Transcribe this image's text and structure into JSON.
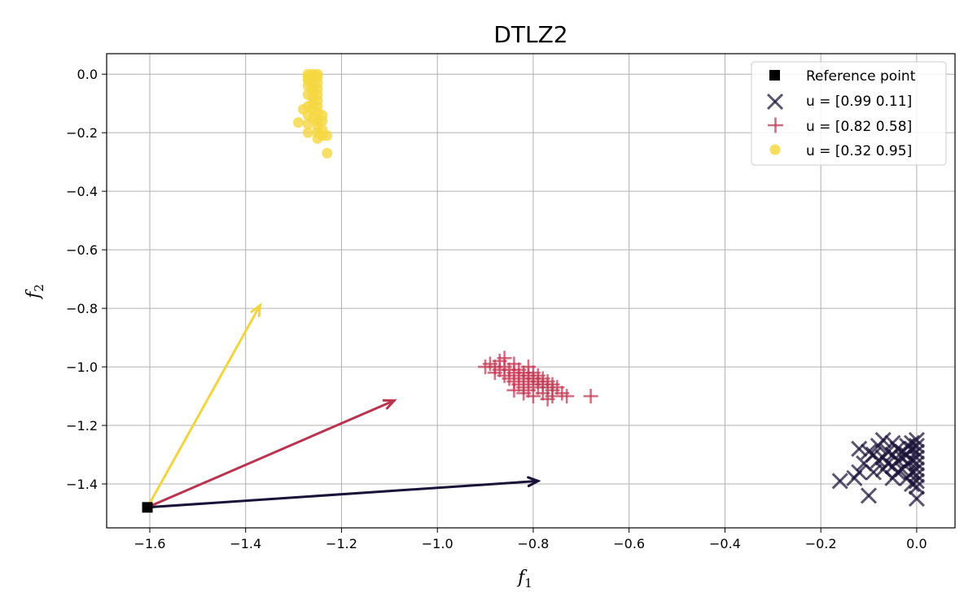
{
  "chart_data": {
    "type": "scatter",
    "title": "DTLZ2",
    "xlabel": "f",
    "xlabel_sub": "1",
    "ylabel": "f",
    "ylabel_sub": "2",
    "xlim": [
      -1.69,
      0.08
    ],
    "ylim": [
      -1.55,
      0.07
    ],
    "xticks": [
      -1.6,
      -1.4,
      -1.2,
      -1.0,
      -0.8,
      -0.6,
      -0.4,
      -0.2,
      0.0
    ],
    "xtick_labels": [
      "−1.6",
      "−1.4",
      "−1.2",
      "−1.0",
      "−0.8",
      "−0.6",
      "−0.4",
      "−0.2",
      "0.0"
    ],
    "yticks": [
      0.0,
      -0.2,
      -0.4,
      -0.6,
      -0.8,
      -1.0,
      -1.2,
      -1.4
    ],
    "ytick_labels": [
      "0.0",
      "−0.2",
      "−0.4",
      "−0.6",
      "−0.8",
      "−1.0",
      "−1.2",
      "−1.4"
    ],
    "grid": true,
    "legend_position": "top-right",
    "reference_point": {
      "label": "Reference point",
      "x": -1.605,
      "y": -1.48,
      "color": "#000000"
    },
    "series": [
      {
        "name": "u = [0.99 0.11]",
        "marker": "x",
        "color": "#1a1238",
        "points": [
          [
            0.0,
            -1.25
          ],
          [
            0.0,
            -1.27
          ],
          [
            0.0,
            -1.29
          ],
          [
            0.0,
            -1.31
          ],
          [
            0.0,
            -1.33
          ],
          [
            0.0,
            -1.35
          ],
          [
            0.0,
            -1.37
          ],
          [
            0.0,
            -1.39
          ],
          [
            0.0,
            -1.41
          ],
          [
            0.0,
            -1.45
          ],
          [
            -0.01,
            -1.26
          ],
          [
            -0.01,
            -1.28
          ],
          [
            -0.01,
            -1.32
          ],
          [
            -0.01,
            -1.36
          ],
          [
            -0.01,
            -1.4
          ],
          [
            -0.02,
            -1.27
          ],
          [
            -0.02,
            -1.3
          ],
          [
            -0.02,
            -1.33
          ],
          [
            -0.02,
            -1.38
          ],
          [
            -0.03,
            -1.29
          ],
          [
            -0.03,
            -1.31
          ],
          [
            -0.03,
            -1.35
          ],
          [
            -0.04,
            -1.28
          ],
          [
            -0.04,
            -1.32
          ],
          [
            -0.04,
            -1.36
          ],
          [
            -0.05,
            -1.26
          ],
          [
            -0.05,
            -1.3
          ],
          [
            -0.05,
            -1.34
          ],
          [
            -0.05,
            -1.38
          ],
          [
            -0.06,
            -1.29
          ],
          [
            -0.06,
            -1.33
          ],
          [
            -0.07,
            -1.25
          ],
          [
            -0.07,
            -1.31
          ],
          [
            -0.07,
            -1.35
          ],
          [
            -0.08,
            -1.27
          ],
          [
            -0.08,
            -1.32
          ],
          [
            -0.09,
            -1.3
          ],
          [
            -0.09,
            -1.36
          ],
          [
            -0.1,
            -1.29
          ],
          [
            -0.1,
            -1.44
          ],
          [
            -0.11,
            -1.33
          ],
          [
            -0.12,
            -1.28
          ],
          [
            -0.12,
            -1.36
          ],
          [
            -0.13,
            -1.38
          ],
          [
            -0.16,
            -1.39
          ]
        ]
      },
      {
        "name": "u = [0.82 0.58]",
        "marker": "+",
        "color": "#c23a55",
        "points": [
          [
            -0.9,
            -1.0
          ],
          [
            -0.89,
            -0.99
          ],
          [
            -0.88,
            -1.02
          ],
          [
            -0.87,
            -0.98
          ],
          [
            -0.87,
            -1.01
          ],
          [
            -0.86,
            -1.0
          ],
          [
            -0.86,
            -1.03
          ],
          [
            -0.85,
            -1.01
          ],
          [
            -0.85,
            -1.04
          ],
          [
            -0.84,
            -0.99
          ],
          [
            -0.84,
            -1.02
          ],
          [
            -0.84,
            -1.05
          ],
          [
            -0.83,
            -1.03
          ],
          [
            -0.83,
            -1.06
          ],
          [
            -0.83,
            -1.01
          ],
          [
            -0.82,
            -1.04
          ],
          [
            -0.82,
            -1.07
          ],
          [
            -0.82,
            -1.02
          ],
          [
            -0.81,
            -1.05
          ],
          [
            -0.81,
            -1.03
          ],
          [
            -0.81,
            -1.08
          ],
          [
            -0.8,
            -1.04
          ],
          [
            -0.8,
            -1.06
          ],
          [
            -0.8,
            -1.02
          ],
          [
            -0.79,
            -1.05
          ],
          [
            -0.79,
            -1.07
          ],
          [
            -0.79,
            -1.03
          ],
          [
            -0.78,
            -1.06
          ],
          [
            -0.78,
            -1.04
          ],
          [
            -0.78,
            -1.09
          ],
          [
            -0.77,
            -1.05
          ],
          [
            -0.77,
            -1.07
          ],
          [
            -0.76,
            -1.06
          ],
          [
            -0.76,
            -1.08
          ],
          [
            -0.75,
            -1.07
          ],
          [
            -0.84,
            -1.08
          ],
          [
            -0.82,
            -1.09
          ],
          [
            -0.8,
            -1.1
          ],
          [
            -0.77,
            -1.11
          ],
          [
            -0.76,
            -1.1
          ],
          [
            -0.74,
            -1.09
          ],
          [
            -0.73,
            -1.1
          ],
          [
            -0.68,
            -1.1
          ],
          [
            -0.86,
            -0.97
          ],
          [
            -0.88,
            -1.0
          ],
          [
            -0.81,
            -1.0
          ]
        ]
      },
      {
        "name": "u = [0.32 0.95]",
        "marker": "o",
        "color": "#f5d741",
        "points": [
          [
            -1.27,
            0.0
          ],
          [
            -1.26,
            0.0
          ],
          [
            -1.25,
            0.0
          ],
          [
            -1.27,
            -0.01
          ],
          [
            -1.26,
            -0.01
          ],
          [
            -1.25,
            -0.01
          ],
          [
            -1.27,
            -0.02
          ],
          [
            -1.26,
            -0.03
          ],
          [
            -1.25,
            -0.03
          ],
          [
            -1.27,
            -0.04
          ],
          [
            -1.26,
            -0.05
          ],
          [
            -1.25,
            -0.05
          ],
          [
            -1.26,
            -0.06
          ],
          [
            -1.25,
            -0.07
          ],
          [
            -1.27,
            -0.07
          ],
          [
            -1.26,
            -0.08
          ],
          [
            -1.25,
            -0.09
          ],
          [
            -1.26,
            -0.1
          ],
          [
            -1.27,
            -0.11
          ],
          [
            -1.25,
            -0.11
          ],
          [
            -1.28,
            -0.12
          ],
          [
            -1.26,
            -0.12
          ],
          [
            -1.25,
            -0.13
          ],
          [
            -1.27,
            -0.14
          ],
          [
            -1.24,
            -0.14
          ],
          [
            -1.26,
            -0.15
          ],
          [
            -1.25,
            -0.16
          ],
          [
            -1.24,
            -0.16
          ],
          [
            -1.29,
            -0.165
          ],
          [
            -1.27,
            -0.17
          ],
          [
            -1.25,
            -0.18
          ],
          [
            -1.24,
            -0.19
          ],
          [
            -1.27,
            -0.2
          ],
          [
            -1.25,
            -0.2
          ],
          [
            -1.24,
            -0.21
          ],
          [
            -1.23,
            -0.21
          ],
          [
            -1.25,
            -0.22
          ],
          [
            -1.23,
            -0.27
          ]
        ]
      }
    ],
    "arrows": [
      {
        "series": "u = [0.99 0.11]",
        "color": "#1a1238",
        "from": [
          -1.605,
          -1.48
        ],
        "to": [
          -0.79,
          -1.39
        ]
      },
      {
        "series": "u = [0.82 0.58]",
        "color": "#b8344f",
        "from": [
          -1.605,
          -1.48
        ],
        "to": [
          -1.09,
          -1.115
        ]
      },
      {
        "series": "u = [0.32 0.95]",
        "color": "#f2d440",
        "from": [
          -1.605,
          -1.48
        ],
        "to": [
          -1.37,
          -0.79
        ]
      }
    ]
  }
}
